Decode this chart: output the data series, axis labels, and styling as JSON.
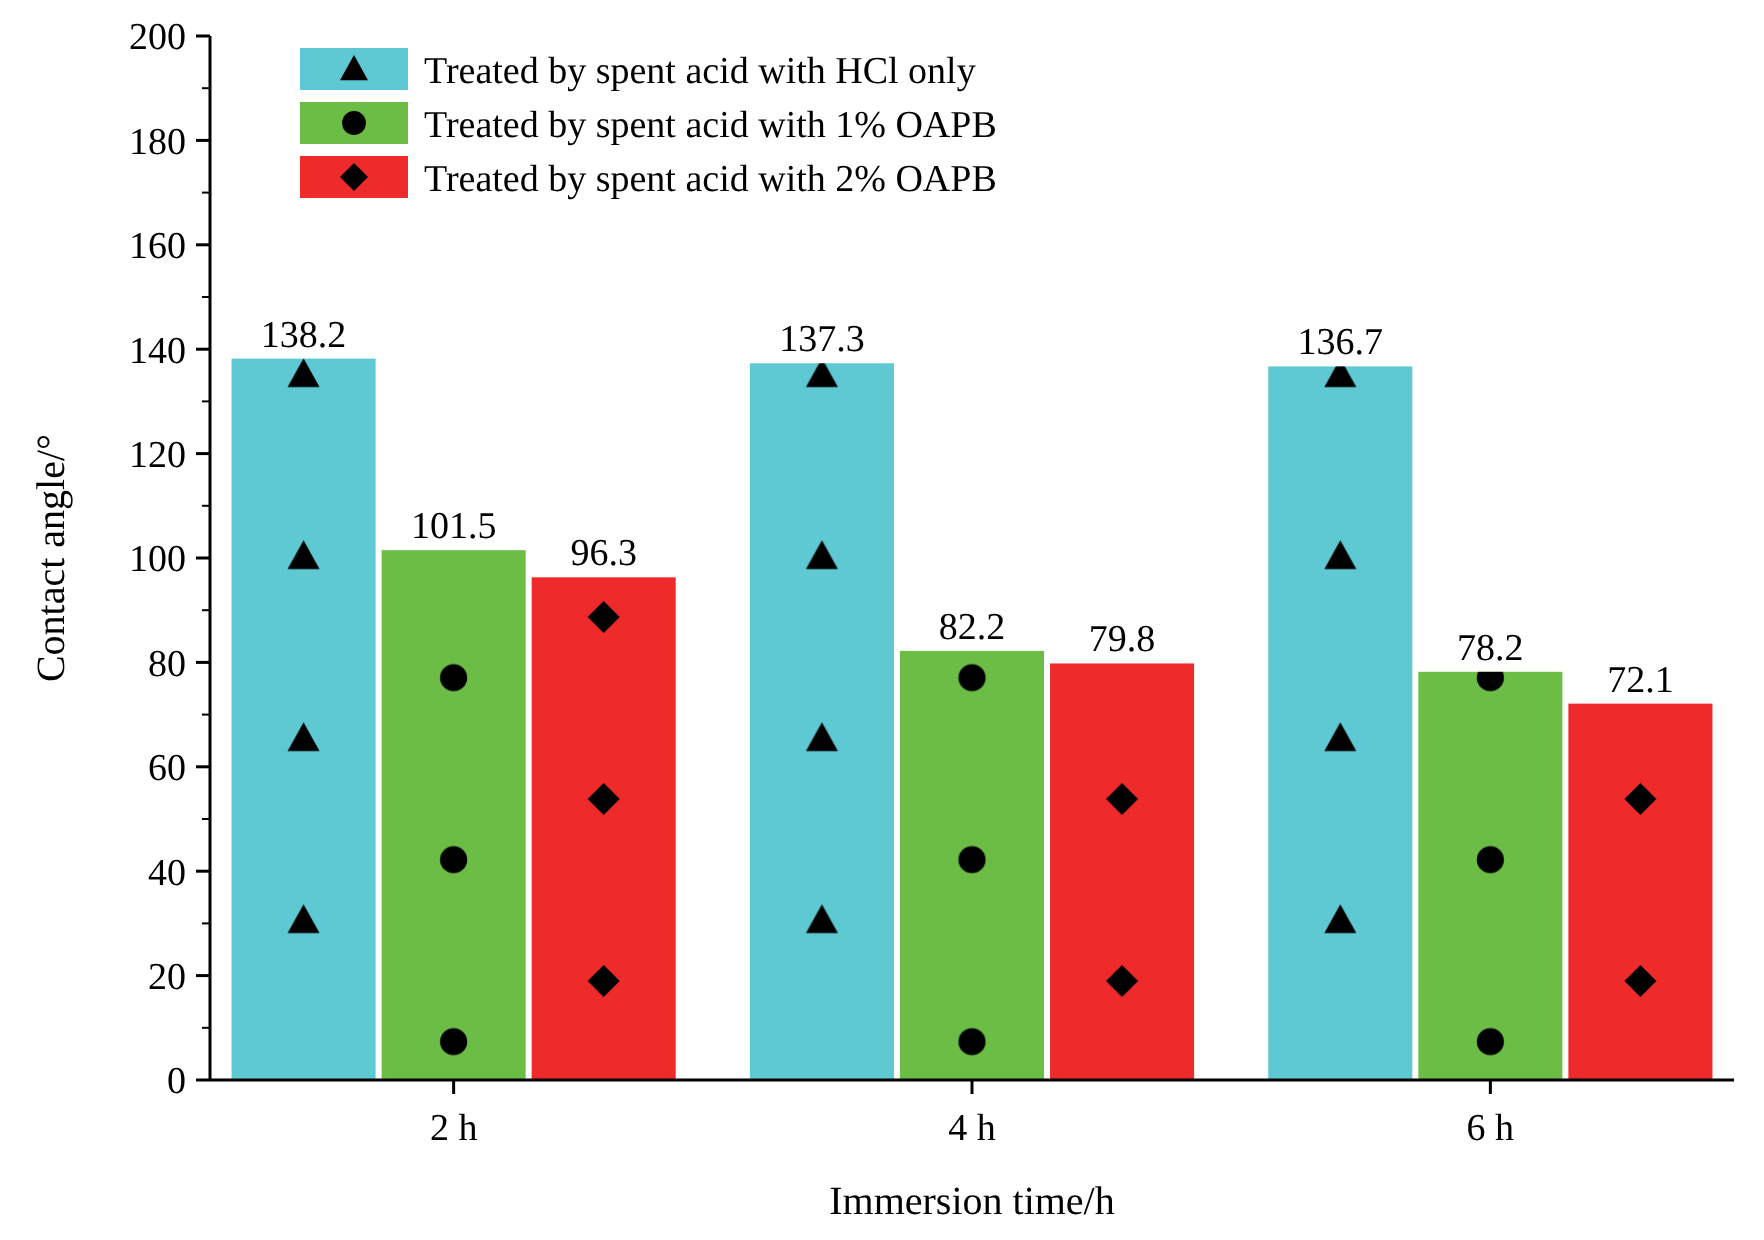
{
  "chart_data": {
    "type": "bar",
    "xlabel": "Immersion time/h",
    "ylabel": "Contact angle/°",
    "categories": [
      "2 h",
      "4 h",
      "6 h"
    ],
    "series": [
      {
        "name": "Treated by spent acid with HCl only",
        "color": "#5ec8d3",
        "marker": "triangle",
        "values": [
          138.2,
          137.3,
          136.7
        ]
      },
      {
        "name": "Treated by spent acid with 1% OAPB",
        "color": "#6cbd45",
        "marker": "circle",
        "values": [
          101.5,
          82.2,
          78.2
        ]
      },
      {
        "name": "Treated by spent acid with 2% OAPB",
        "color": "#ee2a2a",
        "marker": "diamond",
        "values": [
          96.3,
          79.8,
          72.1
        ]
      }
    ],
    "ylim": [
      0,
      200
    ],
    "yticks": [
      0,
      20,
      40,
      60,
      80,
      100,
      120,
      140,
      160,
      180,
      200
    ],
    "data_labels": true,
    "legend": "top left",
    "grid": false
  }
}
